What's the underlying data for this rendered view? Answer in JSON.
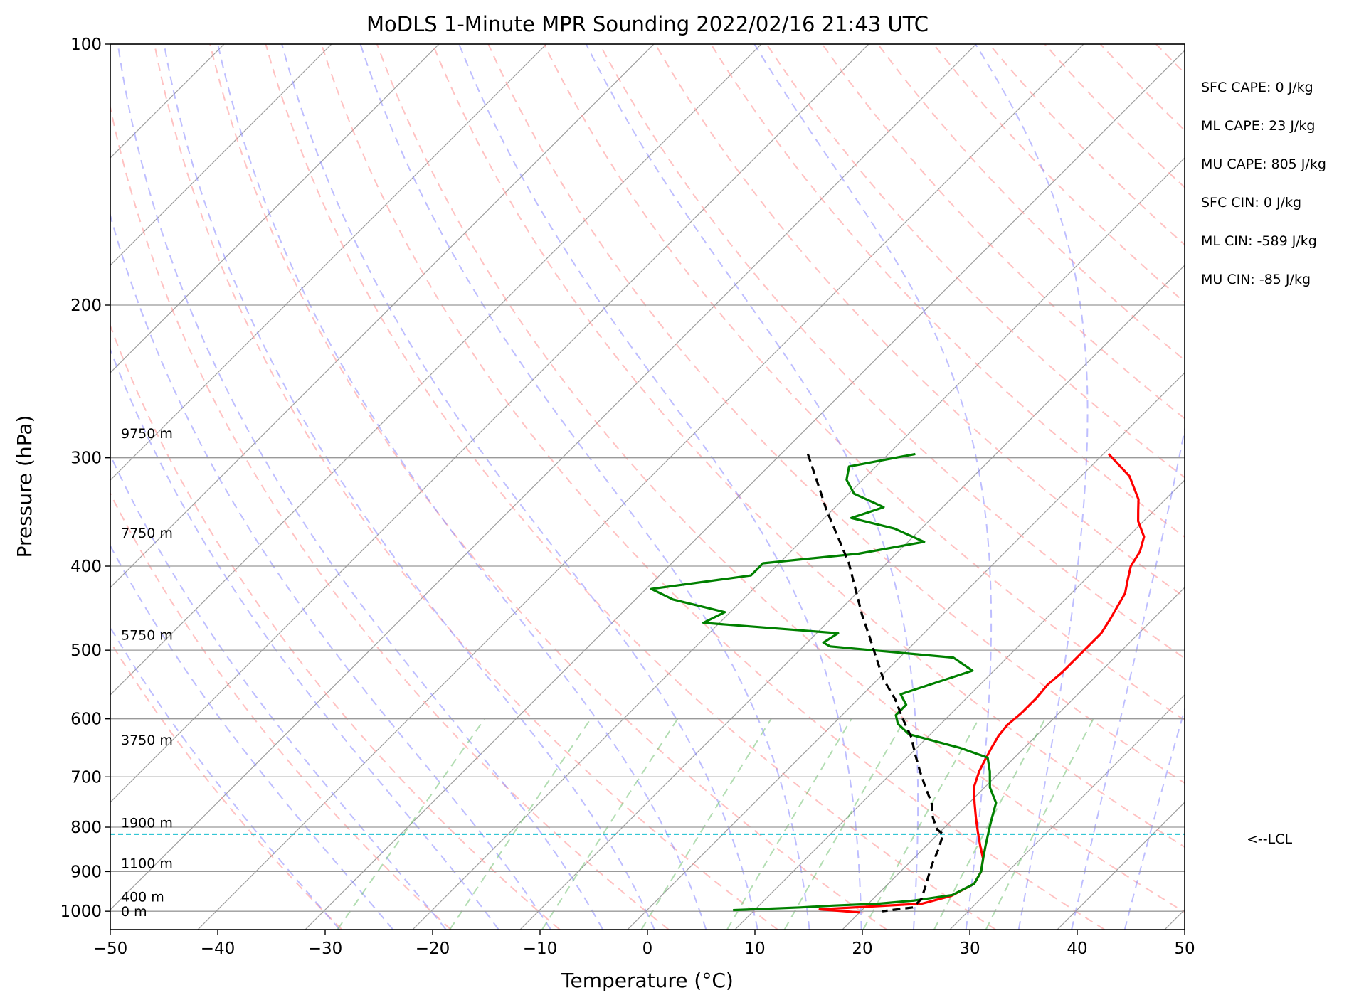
{
  "chart_data": {
    "type": "line",
    "subtype": "skew-T log-P diagram",
    "title": "MoDLS 1-Minute MPR Sounding 2022/02/16 21:43 UTC",
    "xlabel": "Temperature (°C)",
    "ylabel": "Pressure (hPa)",
    "xlim": [
      -50,
      50
    ],
    "ylim": [
      1050,
      100
    ],
    "y_scale": "log",
    "x_ticks": [
      "−50",
      "−40",
      "−30",
      "−20",
      "−10",
      "0",
      "10",
      "20",
      "30",
      "40",
      "50"
    ],
    "y_ticks": [
      "100",
      "200",
      "300",
      "400",
      "500",
      "600",
      "700",
      "800",
      "900",
      "1000"
    ],
    "grid": true,
    "series": [
      {
        "role": "temperature",
        "color": "#ff0000",
        "points": [
          [
            0.5,
            297
          ],
          [
            4.5,
            315
          ],
          [
            7.5,
            335
          ],
          [
            8.5,
            345
          ],
          [
            9.5,
            355
          ],
          [
            11.5,
            370
          ],
          [
            12.5,
            385
          ],
          [
            13,
            400
          ],
          [
            14,
            415
          ],
          [
            15,
            430
          ],
          [
            15.5,
            445
          ],
          [
            16,
            460
          ],
          [
            16.5,
            478
          ],
          [
            16.5,
            495
          ],
          [
            16.5,
            510
          ],
          [
            16.5,
            530
          ],
          [
            16.3,
            548
          ],
          [
            16.5,
            568
          ],
          [
            16.5,
            590
          ],
          [
            16.3,
            610
          ],
          [
            16.5,
            628
          ],
          [
            17,
            650
          ],
          [
            17.5,
            670
          ],
          [
            18,
            690
          ],
          [
            19,
            720
          ],
          [
            20.5,
            750
          ],
          [
            22,
            780
          ],
          [
            23.5,
            810
          ],
          [
            25,
            840
          ],
          [
            26.5,
            870
          ],
          [
            27.5,
            900
          ],
          [
            28,
            930
          ],
          [
            27,
            960
          ],
          [
            25,
            980
          ],
          [
            16,
            995
          ],
          [
            20,
            1003
          ]
        ]
      },
      {
        "role": "dewpoint",
        "color": "#008000",
        "points": [
          [
            -17.5,
            297
          ],
          [
            -22.5,
            307
          ],
          [
            -21.5,
            318
          ],
          [
            -19.5,
            330
          ],
          [
            -15.5,
            342
          ],
          [
            -17.5,
            352
          ],
          [
            -12.5,
            362
          ],
          [
            -8.5,
            375
          ],
          [
            -13.5,
            387
          ],
          [
            -21.5,
            397
          ],
          [
            -21.5,
            410
          ],
          [
            -29.5,
            425
          ],
          [
            -26.5,
            437
          ],
          [
            -20.5,
            452
          ],
          [
            -21.5,
            465
          ],
          [
            -8,
            478
          ],
          [
            -8.5,
            490
          ],
          [
            -7.5,
            495
          ],
          [
            5,
            510
          ],
          [
            8,
            528
          ],
          [
            3.5,
            562
          ],
          [
            5,
            578
          ],
          [
            5,
            594
          ],
          [
            6,
            608
          ],
          [
            8,
            625
          ],
          [
            14,
            648
          ],
          [
            17.5,
            665
          ],
          [
            19,
            690
          ],
          [
            20.5,
            720
          ],
          [
            22.5,
            750
          ],
          [
            23.5,
            780
          ],
          [
            24.5,
            810
          ],
          [
            25.5,
            840
          ],
          [
            26.5,
            870
          ],
          [
            27.5,
            900
          ],
          [
            28,
            930
          ],
          [
            27,
            958
          ],
          [
            24,
            972
          ],
          [
            21,
            980
          ],
          [
            17,
            985
          ],
          [
            14,
            990
          ],
          [
            8,
            997
          ]
        ]
      },
      {
        "role": "parcel",
        "color": "#000000",
        "style": "dashed",
        "points": [
          [
            -27.5,
            297
          ],
          [
            -24,
            320
          ],
          [
            -20.5,
            345
          ],
          [
            -17,
            370
          ],
          [
            -13.5,
            397
          ],
          [
            -10.5,
            425
          ],
          [
            -7.5,
            455
          ],
          [
            -4.5,
            485
          ],
          [
            -2,
            512
          ],
          [
            0.5,
            540
          ],
          [
            3.5,
            570
          ],
          [
            6,
            600
          ],
          [
            8.5,
            630
          ],
          [
            10.5,
            660
          ],
          [
            12.5,
            690
          ],
          [
            14.5,
            720
          ],
          [
            16.5,
            750
          ],
          [
            18,
            780
          ],
          [
            19.5,
            805
          ],
          [
            20.5,
            815
          ],
          [
            21.5,
            850
          ],
          [
            22.2,
            880
          ],
          [
            23,
            910
          ],
          [
            23.8,
            940
          ],
          [
            24.5,
            968
          ],
          [
            24.5,
            990
          ],
          [
            22,
            1000
          ]
        ]
      }
    ],
    "lcl": {
      "pressure": 815,
      "label": "<--LCL"
    },
    "height_labels": [
      {
        "text": "9750 m",
        "pressure": 281
      },
      {
        "text": "7750 m",
        "pressure": 366
      },
      {
        "text": "5750 m",
        "pressure": 480
      },
      {
        "text": "3750 m",
        "pressure": 634
      },
      {
        "text": "1900 m",
        "pressure": 790
      },
      {
        "text": "1100 m",
        "pressure": 880
      },
      {
        "text": "400 m",
        "pressure": 962
      },
      {
        "text": "0 m",
        "pressure": 1000
      }
    ],
    "stats": [
      "SFC CAPE: 0 J/kg",
      "ML CAPE: 23 J/kg",
      "MU CAPE: 805 J/kg",
      "SFC CIN: 0 J/kg",
      "ML CIN: -589 J/kg",
      "MU CIN: -85 J/kg"
    ],
    "colors": {
      "temperature": "#ff0000",
      "dewpoint": "#008000",
      "parcel": "#000000",
      "lcl_line": "#17becf",
      "isotherm": "#888888",
      "dry_adiabat": "#ff9999",
      "moist_adiabat": "#8888ff",
      "mixing_ratio": "#66bb66"
    }
  }
}
